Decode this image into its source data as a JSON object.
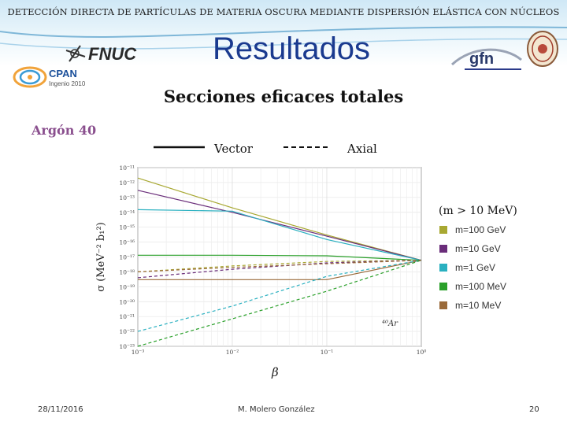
{
  "header": {
    "top_title": "DETECCIÓN DIRECTA DE PARTÍCULAS DE MATERIA OSCURA MEDIANTE DISPERSIÓN ELÁSTICA CON NÚCLEOS",
    "slide_title": "Resultados",
    "logos": {
      "fnuc": "FNUC",
      "cpan": "CPAN",
      "cpan_sub": "Ingenio 2010",
      "gfn": "gfn"
    }
  },
  "subtitle": "Secciones eficaces totales",
  "element_label": "Argón 40",
  "line_legend": {
    "solid": "Vector",
    "dashed": "Axial"
  },
  "mass_legend_title": "(m > 10 MeV)",
  "colors": {
    "title_blue": "#1a3a8f",
    "argon_purple": "#8a4f8e"
  },
  "footer": {
    "date": "28/11/2016",
    "author": "M. Molero González",
    "page": "20"
  },
  "chart_data": {
    "type": "line",
    "xscale": "log",
    "yscale": "log",
    "xlim": [
      0.001,
      1
    ],
    "ylim": [
      1e-23,
      1e-11
    ],
    "xlabel": "β",
    "ylabel": "σ (MeV⁻² b₁²)",
    "annotation": "⁴⁰Ar",
    "x_ticks": [
      "10⁻³",
      "10⁻²",
      "10⁻¹",
      "10⁰"
    ],
    "y_ticks": [
      "10⁻¹¹",
      "10⁻¹²",
      "10⁻¹³",
      "10⁻¹⁴",
      "10⁻¹⁵",
      "10⁻¹⁶",
      "10⁻¹⁷",
      "10⁻¹⁸",
      "10⁻¹⁹",
      "10⁻²⁰",
      "10⁻²¹",
      "10⁻²²",
      "10⁻²³"
    ],
    "series": [
      {
        "name": "m=100 GeV",
        "color": "#a8a832",
        "style": "solid",
        "x": [
          0.001,
          0.01,
          0.1,
          1
        ],
        "y": [
          2e-12,
          2e-14,
          3e-16,
          6e-18
        ]
      },
      {
        "name": "m=10 GeV",
        "color": "#6a2d7a",
        "style": "solid",
        "x": [
          0.001,
          0.01,
          0.1,
          1
        ],
        "y": [
          3e-13,
          1e-14,
          2.5e-16,
          6e-18
        ]
      },
      {
        "name": "m=1 GeV",
        "color": "#2ab0c0",
        "style": "solid",
        "x": [
          0.001,
          0.01,
          0.1,
          1
        ],
        "y": [
          1.5e-14,
          1.2e-14,
          1.5e-16,
          6e-18
        ]
      },
      {
        "name": "m=100 MeV",
        "color": "#2aa02a",
        "style": "solid",
        "x": [
          0.001,
          0.01,
          0.1,
          1
        ],
        "y": [
          1.3e-17,
          1.3e-17,
          1.2e-17,
          6e-18
        ]
      },
      {
        "name": "m=10 MeV",
        "color": "#9a6a3a",
        "style": "solid",
        "x": [
          0.001,
          0.01,
          0.1,
          1
        ],
        "y": [
          3e-19,
          3e-19,
          3e-19,
          6e-18
        ]
      },
      {
        "name": "m=100 GeV",
        "color": "#a8a832",
        "style": "dashed",
        "x": [
          0.001,
          0.01,
          0.1,
          1
        ],
        "y": [
          1e-18,
          2.5e-18,
          5e-18,
          6e-18
        ]
      },
      {
        "name": "m=10 GeV",
        "color": "#6a2d7a",
        "style": "dashed",
        "x": [
          0.001,
          0.01,
          0.1,
          1
        ],
        "y": [
          4e-19,
          1.5e-18,
          4e-18,
          6e-18
        ]
      },
      {
        "name": "m=1 GeV",
        "color": "#2ab0c0",
        "style": "dashed",
        "x": [
          0.001,
          0.01,
          0.1,
          1
        ],
        "y": [
          1e-22,
          5e-21,
          5e-19,
          6e-18
        ]
      },
      {
        "name": "m=100 MeV",
        "color": "#2aa02a",
        "style": "dashed",
        "x": [
          0.001,
          0.01,
          0.1,
          1
        ],
        "y": [
          1e-23,
          7e-22,
          5e-20,
          6e-18
        ]
      },
      {
        "name": "m=10 MeV",
        "color": "#9a6a3a",
        "style": "dashed",
        "x": [
          0.001,
          0.01,
          0.1,
          1
        ],
        "y": [
          1e-18,
          2e-18,
          3.5e-18,
          6e-18
        ]
      }
    ],
    "legend": [
      "m=100 GeV",
      "m=10 GeV",
      "m=1 GeV",
      "m=100 MeV",
      "m=10 MeV"
    ],
    "legend_colors": [
      "#a8a832",
      "#6a2d7a",
      "#2ab0c0",
      "#2aa02a",
      "#9a6a3a"
    ]
  }
}
